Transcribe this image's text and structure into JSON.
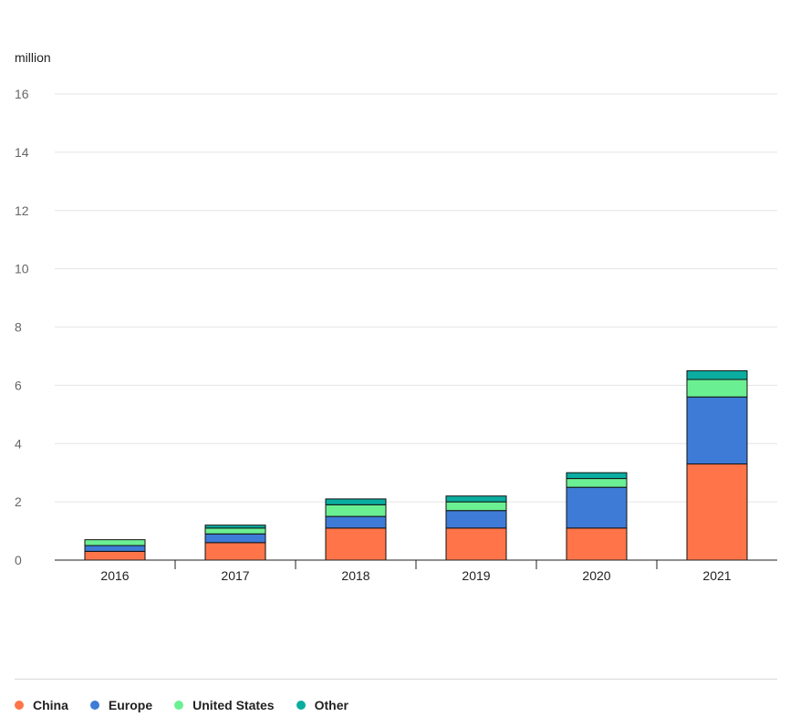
{
  "chart_data": {
    "type": "bar",
    "stacked": true,
    "title": "",
    "unit_label": "million",
    "xlabel": "",
    "ylabel": "million",
    "ylim": [
      0,
      16
    ],
    "yticks": [
      0,
      2,
      4,
      6,
      8,
      10,
      12,
      14,
      16
    ],
    "categories": [
      "2016",
      "2017",
      "2018",
      "2019",
      "2020",
      "2021"
    ],
    "series": [
      {
        "name": "China",
        "color": "#ff7549",
        "values": [
          0.3,
          0.6,
          1.1,
          1.1,
          1.1,
          3.3
        ]
      },
      {
        "name": "Europe",
        "color": "#3e7bd6",
        "values": [
          0.2,
          0.3,
          0.4,
          0.6,
          1.4,
          2.3
        ]
      },
      {
        "name": "United States",
        "color": "#6bef93",
        "values": [
          0.2,
          0.2,
          0.4,
          0.3,
          0.3,
          0.6
        ]
      },
      {
        "name": "Other",
        "color": "#0aada0",
        "values": [
          0.0,
          0.1,
          0.2,
          0.2,
          0.2,
          0.3
        ]
      }
    ],
    "grid": true,
    "legend_position": "bottom"
  },
  "legend": {
    "items": [
      {
        "label": "China",
        "color": "#ff7549"
      },
      {
        "label": "Europe",
        "color": "#3e7bd6"
      },
      {
        "label": "United States",
        "color": "#6bef93"
      },
      {
        "label": "Other",
        "color": "#0aada0"
      }
    ]
  }
}
